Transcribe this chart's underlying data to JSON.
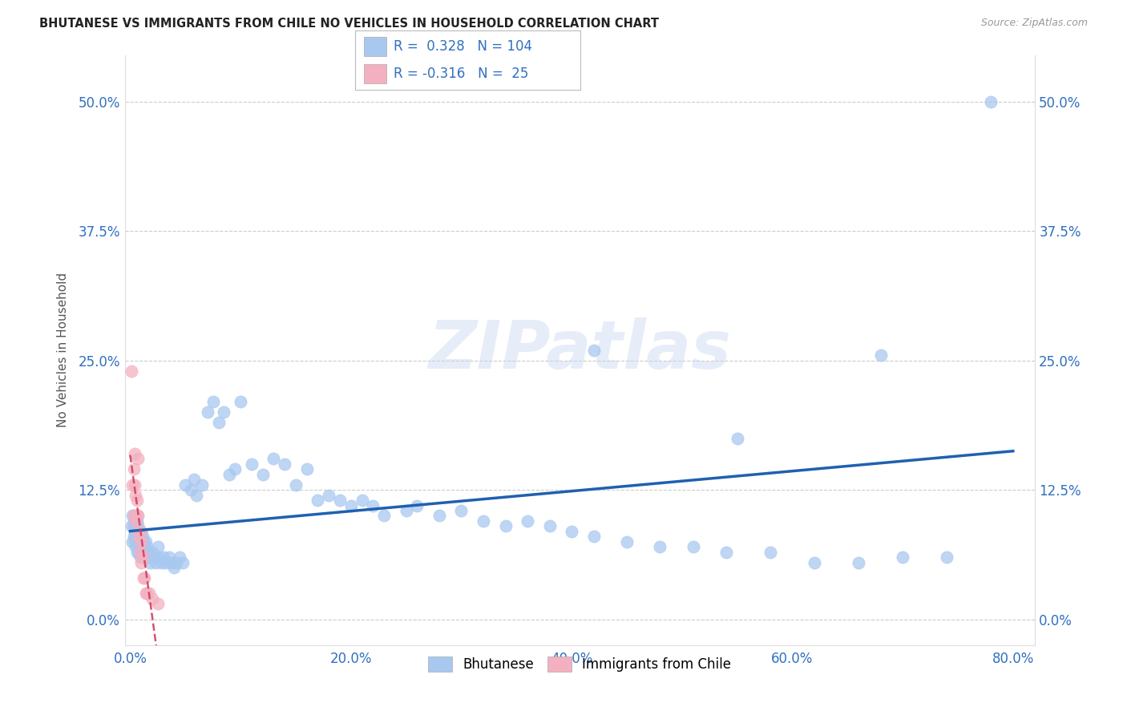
{
  "title": "BHUTANESE VS IMMIGRANTS FROM CHILE NO VEHICLES IN HOUSEHOLD CORRELATION CHART",
  "source": "Source: ZipAtlas.com",
  "ylabel": "No Vehicles in Household",
  "xlabel_ticks": [
    "0.0%",
    "20.0%",
    "40.0%",
    "60.0%",
    "80.0%"
  ],
  "xlabel_vals": [
    0.0,
    0.2,
    0.4,
    0.6,
    0.8
  ],
  "ylabel_ticks": [
    "0.0%",
    "12.5%",
    "25.0%",
    "37.5%",
    "50.0%"
  ],
  "ylabel_vals": [
    0.0,
    0.125,
    0.25,
    0.375,
    0.5
  ],
  "blue_R": 0.328,
  "blue_N": 104,
  "pink_R": -0.316,
  "pink_N": 25,
  "blue_color": "#a8c8f0",
  "pink_color": "#f4b0c0",
  "line_blue": "#2060b0",
  "line_pink": "#d04060",
  "legend_label_blue": "Bhutanese",
  "legend_label_pink": "Immigrants from Chile",
  "watermark": "ZIPatlas",
  "blue_x": [
    0.001,
    0.002,
    0.002,
    0.003,
    0.003,
    0.003,
    0.004,
    0.004,
    0.004,
    0.005,
    0.005,
    0.005,
    0.006,
    0.006,
    0.006,
    0.006,
    0.007,
    0.007,
    0.007,
    0.008,
    0.008,
    0.008,
    0.009,
    0.009,
    0.009,
    0.01,
    0.01,
    0.01,
    0.011,
    0.011,
    0.012,
    0.012,
    0.013,
    0.013,
    0.014,
    0.014,
    0.015,
    0.015,
    0.016,
    0.017,
    0.018,
    0.019,
    0.02,
    0.022,
    0.023,
    0.025,
    0.026,
    0.028,
    0.03,
    0.032,
    0.035,
    0.037,
    0.04,
    0.042,
    0.045,
    0.048,
    0.05,
    0.055,
    0.058,
    0.06,
    0.065,
    0.07,
    0.075,
    0.08,
    0.085,
    0.09,
    0.095,
    0.1,
    0.11,
    0.12,
    0.13,
    0.14,
    0.15,
    0.16,
    0.17,
    0.18,
    0.19,
    0.2,
    0.21,
    0.22,
    0.23,
    0.25,
    0.26,
    0.28,
    0.3,
    0.32,
    0.34,
    0.36,
    0.38,
    0.4,
    0.42,
    0.45,
    0.48,
    0.51,
    0.54,
    0.58,
    0.62,
    0.66,
    0.7,
    0.74,
    0.42,
    0.55,
    0.68,
    0.78
  ],
  "blue_y": [
    0.09,
    0.1,
    0.075,
    0.09,
    0.08,
    0.095,
    0.085,
    0.075,
    0.1,
    0.09,
    0.08,
    0.07,
    0.095,
    0.085,
    0.075,
    0.065,
    0.09,
    0.08,
    0.07,
    0.085,
    0.075,
    0.065,
    0.08,
    0.07,
    0.06,
    0.085,
    0.075,
    0.065,
    0.08,
    0.07,
    0.075,
    0.065,
    0.07,
    0.06,
    0.075,
    0.065,
    0.07,
    0.06,
    0.065,
    0.06,
    0.055,
    0.06,
    0.065,
    0.06,
    0.055,
    0.07,
    0.06,
    0.055,
    0.06,
    0.055,
    0.06,
    0.055,
    0.05,
    0.055,
    0.06,
    0.055,
    0.13,
    0.125,
    0.135,
    0.12,
    0.13,
    0.2,
    0.21,
    0.19,
    0.2,
    0.14,
    0.145,
    0.21,
    0.15,
    0.14,
    0.155,
    0.15,
    0.13,
    0.145,
    0.115,
    0.12,
    0.115,
    0.11,
    0.115,
    0.11,
    0.1,
    0.105,
    0.11,
    0.1,
    0.105,
    0.095,
    0.09,
    0.095,
    0.09,
    0.085,
    0.08,
    0.075,
    0.07,
    0.07,
    0.065,
    0.065,
    0.055,
    0.055,
    0.06,
    0.06,
    0.26,
    0.175,
    0.255,
    0.5
  ],
  "pink_x": [
    0.001,
    0.002,
    0.003,
    0.003,
    0.004,
    0.004,
    0.005,
    0.005,
    0.006,
    0.006,
    0.007,
    0.007,
    0.008,
    0.009,
    0.009,
    0.01,
    0.01,
    0.011,
    0.012,
    0.013,
    0.014,
    0.015,
    0.017,
    0.02,
    0.025
  ],
  "pink_y": [
    0.24,
    0.13,
    0.145,
    0.1,
    0.16,
    0.13,
    0.12,
    0.095,
    0.1,
    0.115,
    0.155,
    0.1,
    0.08,
    0.085,
    0.065,
    0.075,
    0.055,
    0.06,
    0.04,
    0.04,
    0.025,
    0.025,
    0.025,
    0.02,
    0.015
  ]
}
